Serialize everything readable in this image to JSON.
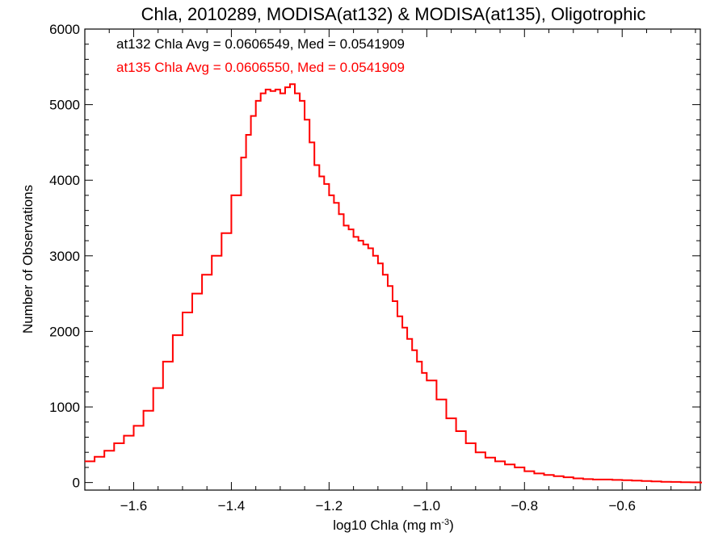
{
  "chart_data": {
    "type": "line",
    "title": "Chla, 2010289, MODISA(at132) & MODISA(at135), Oligotrophic",
    "xlabel": "log10 Chla (mg m",
    "xlabel_sup": "-3",
    "xlabel_end": ")",
    "ylabel": "Number of Observations",
    "xlim": [
      -1.7,
      -0.44
    ],
    "ylim": [
      -100,
      6000
    ],
    "xticks": [
      -1.6,
      -1.4,
      -1.2,
      -1.0,
      -0.8,
      -0.6
    ],
    "xtick_labels": [
      "−1.6",
      "−1.4",
      "−1.2",
      "−1.0",
      "−0.8",
      "−0.6"
    ],
    "yticks": [
      0,
      1000,
      2000,
      3000,
      4000,
      5000,
      6000
    ],
    "ytick_labels": [
      "0",
      "1000",
      "2000",
      "3000",
      "4000",
      "5000",
      "6000"
    ],
    "annotations": [
      {
        "text": "at132 Chla Avg = 0.0606549, Med = 0.0541909",
        "color": "#000000"
      },
      {
        "text": "at135 Chla Avg = 0.0606550, Med = 0.0541909",
        "color": "#ff0000"
      }
    ],
    "series": [
      {
        "name": "at135",
        "color": "#ff0000",
        "style": "step",
        "x": [
          -1.7,
          -1.68,
          -1.66,
          -1.64,
          -1.62,
          -1.6,
          -1.58,
          -1.56,
          -1.54,
          -1.52,
          -1.5,
          -1.48,
          -1.46,
          -1.44,
          -1.42,
          -1.4,
          -1.38,
          -1.37,
          -1.36,
          -1.35,
          -1.34,
          -1.33,
          -1.32,
          -1.31,
          -1.3,
          -1.29,
          -1.28,
          -1.27,
          -1.26,
          -1.25,
          -1.24,
          -1.23,
          -1.22,
          -1.21,
          -1.2,
          -1.19,
          -1.18,
          -1.17,
          -1.16,
          -1.15,
          -1.14,
          -1.13,
          -1.12,
          -1.11,
          -1.1,
          -1.09,
          -1.08,
          -1.07,
          -1.06,
          -1.05,
          -1.04,
          -1.03,
          -1.02,
          -1.01,
          -1.0,
          -0.98,
          -0.96,
          -0.94,
          -0.92,
          -0.9,
          -0.88,
          -0.86,
          -0.84,
          -0.82,
          -0.8,
          -0.78,
          -0.76,
          -0.74,
          -0.72,
          -0.7,
          -0.68,
          -0.66,
          -0.64,
          -0.62,
          -0.6,
          -0.58,
          -0.56,
          -0.54,
          -0.52,
          -0.5,
          -0.48,
          -0.46,
          -0.44
        ],
        "y": [
          280,
          340,
          420,
          520,
          620,
          750,
          950,
          1250,
          1600,
          1950,
          2250,
          2500,
          2750,
          3000,
          3300,
          3800,
          4300,
          4600,
          4850,
          5050,
          5150,
          5200,
          5180,
          5200,
          5150,
          5230,
          5270,
          5150,
          5050,
          4800,
          4500,
          4200,
          4050,
          3950,
          3800,
          3700,
          3550,
          3400,
          3350,
          3250,
          3200,
          3150,
          3100,
          3000,
          2900,
          2750,
          2600,
          2400,
          2200,
          2050,
          1900,
          1750,
          1600,
          1450,
          1350,
          1100,
          850,
          680,
          520,
          400,
          330,
          280,
          240,
          200,
          150,
          120,
          100,
          85,
          70,
          55,
          45,
          40,
          40,
          35,
          30,
          25,
          20,
          15,
          10,
          8,
          5,
          3,
          0
        ]
      }
    ]
  }
}
